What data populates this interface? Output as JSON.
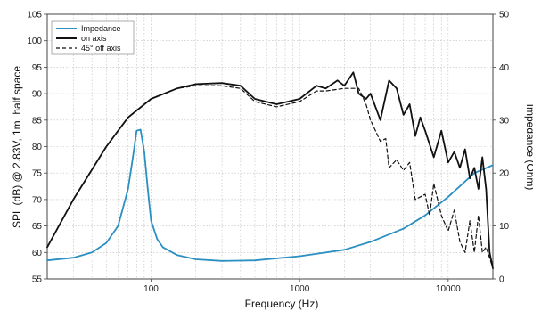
{
  "chart_data": {
    "type": "line",
    "xlabel": "Frequency (Hz)",
    "ylabel_left": "SPL (dB) @ 2.83V, 1m, half space",
    "ylabel_right": "Impedance (Ohm)",
    "x_scale": "log",
    "xlim": [
      20,
      20000
    ],
    "ylim_left": [
      55,
      105
    ],
    "ylim_right": [
      0,
      50
    ],
    "x_ticks": [
      100,
      1000,
      10000
    ],
    "x_tick_labels": [
      "100",
      "1000",
      "10000"
    ],
    "y_ticks_left": [
      55,
      60,
      65,
      70,
      75,
      80,
      85,
      90,
      95,
      100,
      105
    ],
    "y_tick_labels_left": [
      "55",
      "60",
      "65",
      "70",
      "75",
      "80",
      "85",
      "90",
      "95",
      "100",
      "105"
    ],
    "y_ticks_right": [
      0,
      10,
      20,
      30,
      40,
      50
    ],
    "y_tick_labels_right": [
      "0",
      "10",
      "20",
      "30",
      "40",
      "50"
    ],
    "grid": true,
    "legend_position": "top-left",
    "series": [
      {
        "name": "Impedance",
        "axis": "right",
        "color": "#2a8fc1",
        "style": "solid",
        "x": [
          20,
          30,
          40,
          50,
          60,
          70,
          75,
          80,
          85,
          90,
          95,
          100,
          110,
          120,
          150,
          200,
          300,
          500,
          1000,
          2000,
          3000,
          5000,
          7000,
          10000,
          15000,
          20000
        ],
        "y": [
          3.5,
          4.0,
          5.0,
          6.8,
          10.0,
          17.0,
          22.5,
          28.0,
          28.2,
          24.0,
          17.0,
          11.0,
          7.5,
          6.0,
          4.5,
          3.7,
          3.4,
          3.5,
          4.3,
          5.5,
          7.0,
          9.5,
          12.0,
          15.5,
          20.0,
          21.5
        ]
      },
      {
        "name": "on axis",
        "axis": "left",
        "color": "#111111",
        "style": "solid",
        "x": [
          20,
          30,
          50,
          70,
          100,
          150,
          200,
          300,
          400,
          500,
          700,
          1000,
          1300,
          1500,
          1800,
          2000,
          2300,
          2500,
          2800,
          3000,
          3500,
          4000,
          4500,
          5000,
          5500,
          6000,
          6500,
          7000,
          8000,
          9000,
          10000,
          11000,
          12000,
          13000,
          14000,
          15000,
          16000,
          17000,
          18000,
          19000,
          20000
        ],
        "y": [
          61,
          70,
          80,
          85.5,
          89,
          91,
          91.8,
          92,
          91.5,
          89,
          88,
          89,
          91.5,
          91,
          92.5,
          91.5,
          94,
          90,
          89,
          90,
          85,
          92.5,
          91,
          86,
          88,
          82,
          85.5,
          83,
          78,
          83,
          77,
          79,
          76,
          79.5,
          74,
          76,
          72,
          78,
          72,
          60,
          57
        ]
      },
      {
        "name": "45° off axis",
        "axis": "left",
        "color": "#111111",
        "style": "dashed",
        "x": [
          100,
          150,
          200,
          300,
          400,
          500,
          700,
          1000,
          1300,
          1500,
          2000,
          2500,
          2800,
          3000,
          3500,
          3800,
          4000,
          4500,
          5000,
          5500,
          6000,
          7000,
          7500,
          8000,
          9000,
          10000,
          11000,
          12000,
          13000,
          14000,
          15000,
          16000,
          17000,
          18000,
          19000,
          20000
        ],
        "y": [
          89,
          91,
          91.5,
          91.5,
          91,
          88.5,
          87.5,
          88.5,
          90.5,
          90.5,
          91,
          91,
          88,
          85,
          81,
          81.5,
          76,
          77.5,
          75.5,
          77,
          70,
          71,
          67,
          73,
          67,
          64,
          68,
          62,
          60,
          66,
          60,
          67,
          60,
          61,
          59,
          57
        ]
      }
    ]
  }
}
